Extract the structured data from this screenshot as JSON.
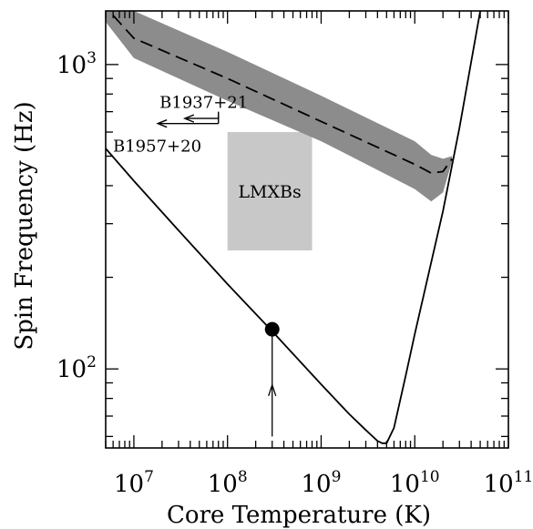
{
  "chart_data": {
    "type": "line",
    "xlabel": "Core Temperature (K)",
    "ylabel": "Spin Frequency (Hz)",
    "xscale": "log",
    "yscale": "log",
    "xlim": [
      5000000,
      100000000000
    ],
    "ylim": [
      55,
      1500
    ],
    "grid": false,
    "xticks": [
      {
        "value": 10000000,
        "base": "10",
        "exp": "7"
      },
      {
        "value": 100000000,
        "base": "10",
        "exp": "8"
      },
      {
        "value": 1000000000,
        "base": "10",
        "exp": "9"
      },
      {
        "value": 10000000000,
        "base": "10",
        "exp": "10"
      },
      {
        "value": 100000000000,
        "base": "10",
        "exp": "11"
      }
    ],
    "yticks": [
      {
        "value": 100,
        "base": "10",
        "exp": "2"
      },
      {
        "value": 1000,
        "base": "10",
        "exp": "3"
      }
    ],
    "series": [
      {
        "style": "solid",
        "color": "#000000",
        "x": [
          5000000,
          10000000,
          30000000,
          100000000,
          300000000,
          1000000000,
          2000000000,
          3000000000,
          4000000000,
          4500000000,
          5000000000,
          6000000000,
          8000000000,
          10000000000,
          20000000000,
          30000000000,
          50000000000
        ],
        "y": [
          530,
          415,
          285,
          190,
          133,
          89,
          71,
          63,
          58,
          57,
          57,
          64,
          95,
          130,
          330,
          620,
          1500
        ]
      },
      {
        "style": "dashed",
        "color": "#000000",
        "x": [
          6000000,
          10000000,
          100000000,
          1000000000,
          10000000000,
          15000000000,
          20000000000,
          25000000000
        ],
        "y": [
          1450,
          1220,
          900,
          650,
          470,
          440,
          445,
          490
        ]
      }
    ],
    "bands": [
      {
        "color": "#8c8c8c",
        "x": [
          5000000,
          10000000,
          100000000,
          1000000000,
          10000000000,
          15000000000,
          20000000000,
          25000000000
        ],
        "y_upper": [
          1500,
          1500,
          1100,
          790,
          560,
          505,
          490,
          500
        ],
        "y_lower": [
          1380,
          1050,
          760,
          560,
          390,
          355,
          380,
          480
        ]
      }
    ],
    "regions": [
      {
        "label": "LMXBs",
        "color": "#c8c8c8",
        "x": [
          100000000,
          800000000
        ],
        "y": [
          245,
          600
        ]
      }
    ],
    "markers": [
      {
        "x": 300000000,
        "y": 135,
        "style": "filled-circle"
      }
    ],
    "arrows": [
      {
        "from": [
          300000000,
          60
        ],
        "to": [
          300000000,
          135
        ]
      }
    ],
    "annotations": [
      {
        "text": "B1937+21",
        "x": 18000000,
        "y": 750
      },
      {
        "text": "B1957+20",
        "x": 5000000,
        "y": 540
      }
    ],
    "limit_arrows": [
      {
        "name": "B1937+21",
        "from": 80000000,
        "to": 18000000,
        "y": 640,
        "tick_y": 700
      },
      {
        "name": "B1957+20",
        "from": 80000000,
        "to": 35000000,
        "y": 665,
        "tick_y": 680
      }
    ]
  }
}
